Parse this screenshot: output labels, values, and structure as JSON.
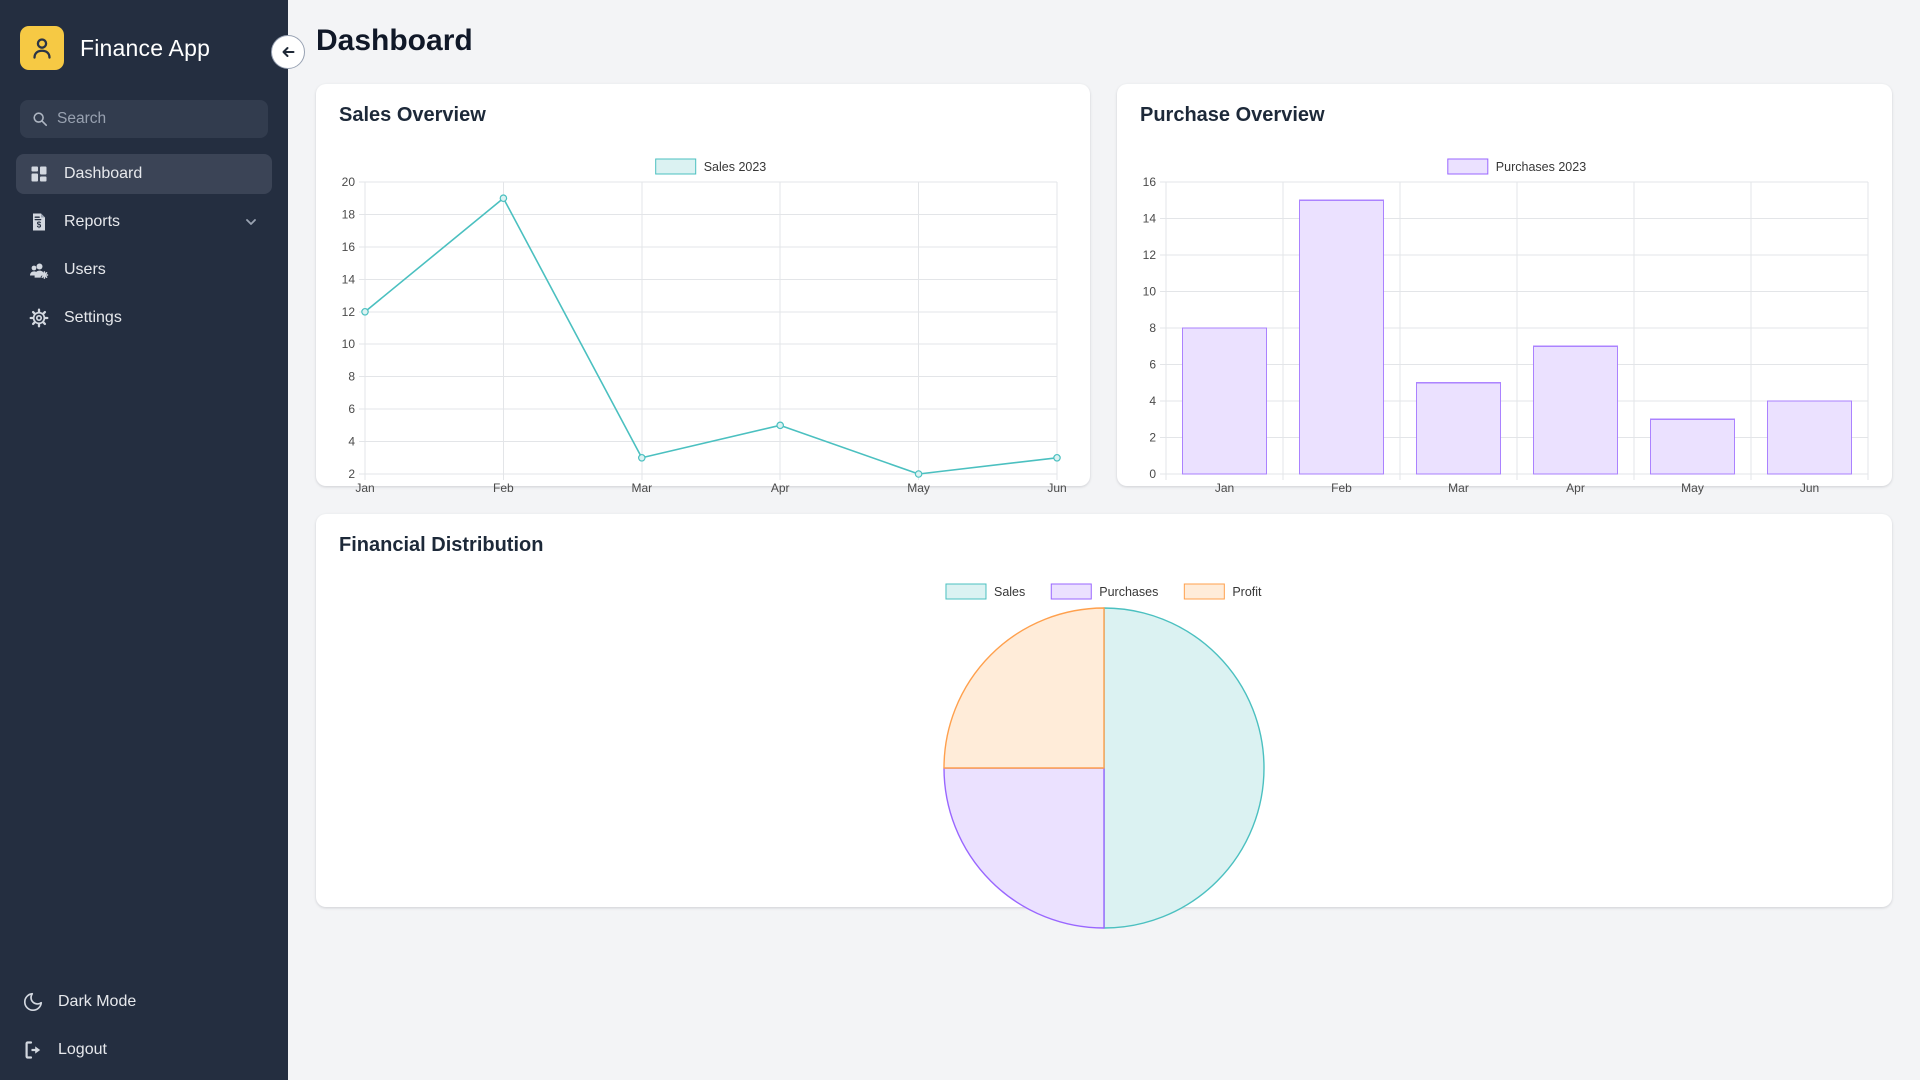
{
  "app": {
    "name": "Finance App"
  },
  "sidebar": {
    "search_placeholder": "Search",
    "items": [
      {
        "label": "Dashboard",
        "icon": "grid-icon",
        "active": true
      },
      {
        "label": "Reports",
        "icon": "invoice-icon",
        "has_submenu": true
      },
      {
        "label": "Users",
        "icon": "users-gear-icon"
      },
      {
        "label": "Settings",
        "icon": "gear-icon"
      }
    ],
    "footer": [
      {
        "label": "Dark Mode",
        "icon": "moon-icon"
      },
      {
        "label": "Logout",
        "icon": "logout-icon"
      }
    ]
  },
  "header": {
    "title": "Dashboard"
  },
  "colors": {
    "sidebar_bg": "#242E40",
    "sidebar_active": "#3B4456",
    "logo_yellow": "#F6C944",
    "page_bg": "#F3F4F6",
    "teal_border": "#4BC0C0",
    "teal_fill": "#DBF2F2",
    "purple_border": "#9966FF",
    "purple_fill": "#EBE1FF",
    "orange_border": "#FFA04D",
    "orange_fill": "#FFECD9"
  },
  "chart_data": [
    {
      "type": "line",
      "card_title": "Sales Overview",
      "categories": [
        "Jan",
        "Feb",
        "Mar",
        "Apr",
        "May",
        "Jun"
      ],
      "series": [
        {
          "name": "Sales 2023",
          "values": [
            12,
            19,
            3,
            5,
            2,
            3
          ]
        }
      ],
      "ylim": [
        2,
        20
      ],
      "ytick_step": 2,
      "grid": true,
      "legend_position": "top",
      "color_border": "#4BC0C0",
      "color_fill": "#DBF2F2"
    },
    {
      "type": "bar",
      "card_title": "Purchase Overview",
      "categories": [
        "Jan",
        "Feb",
        "Mar",
        "Apr",
        "May",
        "Jun"
      ],
      "series": [
        {
          "name": "Purchases 2023",
          "values": [
            8,
            15,
            5,
            7,
            3,
            4
          ]
        }
      ],
      "ylim": [
        0,
        16
      ],
      "ytick_step": 2,
      "grid": true,
      "legend_position": "top",
      "color_border": "#9966FF",
      "color_fill": "#EBE1FF"
    },
    {
      "type": "pie",
      "card_title": "Financial Distribution",
      "labels": [
        "Sales",
        "Purchases",
        "Profit"
      ],
      "values": [
        50,
        25,
        25
      ],
      "unit": "percent",
      "colors_border": [
        "#4BC0C0",
        "#9966FF",
        "#FFA04D"
      ],
      "colors_fill": [
        "#DBF2F2",
        "#EBE1FF",
        "#FFECD9"
      ],
      "legend_position": "top"
    }
  ]
}
